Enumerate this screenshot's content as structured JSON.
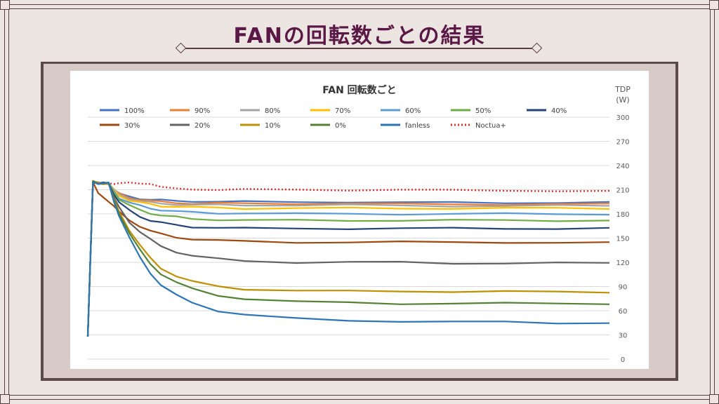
{
  "slide": {
    "title": "FANの回転数ごとの結果"
  },
  "chart_data": {
    "type": "line",
    "title": "FAN 回転数ごと",
    "ylabel": "TDP\n(W)",
    "ylabel_lines": [
      "TDP",
      "(W)"
    ],
    "ylim": [
      0,
      300
    ],
    "yticks": [
      0,
      30,
      60,
      90,
      120,
      150,
      180,
      210,
      240,
      270,
      300
    ],
    "x": [
      0,
      1,
      2,
      3,
      4,
      5,
      6,
      8,
      10,
      12,
      14,
      17,
      20,
      25,
      30,
      40,
      50,
      60,
      70,
      80,
      90,
      100
    ],
    "grid": true,
    "legend_position": "top",
    "series": [
      {
        "name": "100%",
        "color": "#4472c4",
        "dash": "solid",
        "values": [
          28,
          220,
          218,
          218,
          218,
          210,
          205,
          201,
          199,
          198,
          197,
          196,
          196,
          195,
          195,
          195,
          195,
          194,
          194,
          194,
          194,
          194
        ]
      },
      {
        "name": "90%",
        "color": "#ed7d31",
        "dash": "solid",
        "values": [
          28,
          220,
          218,
          218,
          218,
          210,
          205,
          200,
          198,
          196,
          195,
          194,
          193,
          193,
          193,
          193,
          193,
          192,
          192,
          192,
          192,
          192
        ]
      },
      {
        "name": "80%",
        "color": "#a5a5a5",
        "dash": "solid",
        "values": [
          28,
          220,
          218,
          218,
          218,
          210,
          204,
          199,
          196,
          194,
          193,
          192,
          191,
          191,
          191,
          191,
          191,
          190,
          190,
          190,
          190,
          190
        ]
      },
      {
        "name": "70%",
        "color": "#ffc000",
        "dash": "solid",
        "values": [
          28,
          220,
          218,
          218,
          218,
          209,
          203,
          197,
          194,
          192,
          190,
          189,
          188,
          188,
          187,
          187,
          187,
          187,
          187,
          187,
          187,
          187
        ]
      },
      {
        "name": "60%",
        "color": "#5b9bd5",
        "dash": "solid",
        "values": [
          28,
          220,
          218,
          218,
          218,
          208,
          200,
          194,
          190,
          187,
          185,
          183,
          182,
          181,
          181,
          180,
          180,
          180,
          180,
          180,
          180,
          180
        ]
      },
      {
        "name": "50%",
        "color": "#70ad47",
        "dash": "solid",
        "values": [
          28,
          220,
          218,
          218,
          218,
          207,
          198,
          190,
          185,
          181,
          178,
          176,
          174,
          173,
          172,
          172,
          172,
          172,
          172,
          172,
          172,
          172
        ]
      },
      {
        "name": "40%",
        "color": "#264478",
        "dash": "solid",
        "values": [
          28,
          220,
          218,
          218,
          218,
          205,
          194,
          184,
          177,
          172,
          169,
          166,
          164,
          163,
          162,
          162,
          162,
          162,
          162,
          162,
          162,
          162
        ]
      },
      {
        "name": "30%",
        "color": "#9e480e",
        "dash": "solid",
        "values": [
          28,
          220,
          205,
          200,
          196,
          190,
          182,
          172,
          165,
          159,
          155,
          151,
          149,
          147,
          146,
          145,
          145,
          145,
          145,
          145,
          144,
          144
        ]
      },
      {
        "name": "20%",
        "color": "#636363",
        "dash": "solid",
        "values": [
          28,
          220,
          218,
          218,
          218,
          200,
          188,
          170,
          158,
          148,
          140,
          133,
          128,
          124,
          122,
          120,
          120,
          120,
          119,
          119,
          119,
          119
        ]
      },
      {
        "name": "10%",
        "color": "#bf9000",
        "dash": "solid",
        "values": [
          28,
          220,
          218,
          218,
          218,
          198,
          183,
          160,
          141,
          125,
          113,
          103,
          96,
          90,
          87,
          85,
          84,
          84,
          84,
          84,
          83,
          83
        ]
      },
      {
        "name": "0%",
        "color": "#548235",
        "dash": "solid",
        "values": [
          28,
          220,
          218,
          218,
          218,
          197,
          181,
          156,
          135,
          118,
          106,
          95,
          87,
          79,
          75,
          71,
          70,
          69,
          69,
          69,
          69,
          69
        ]
      },
      {
        "name": "fanless",
        "color": "#2e75b6",
        "dash": "solid",
        "values": [
          28,
          220,
          218,
          218,
          218,
          196,
          178,
          150,
          126,
          107,
          92,
          79,
          70,
          60,
          55,
          50,
          48,
          47,
          46,
          46,
          45,
          45
        ]
      },
      {
        "name": "Noctua+",
        "color": "#e03030",
        "dash": "dotted",
        "values": [
          28,
          220,
          218,
          218,
          218,
          218,
          218,
          218,
          218,
          218,
          213,
          211,
          211,
          210,
          210,
          210,
          210,
          210,
          209,
          209,
          209,
          208
        ]
      }
    ]
  }
}
